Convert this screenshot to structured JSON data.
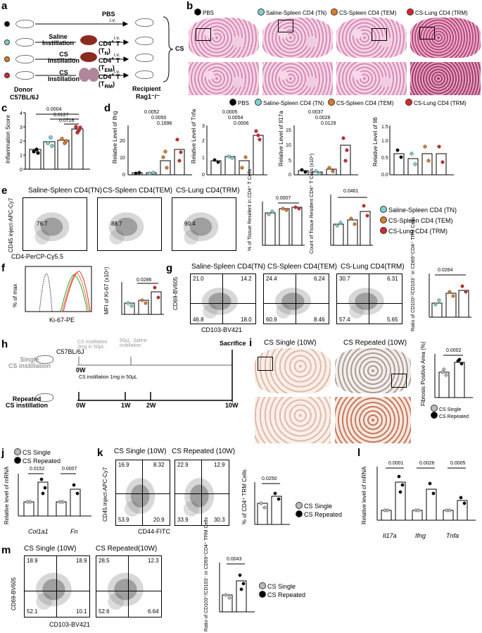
{
  "panels": {
    "a": {
      "letter": "a",
      "donor": "Donor",
      "donor_strain": "C57BL/6J",
      "saline_instillation": "Saline\nInstillation",
      "cs_instillation1": "CS\nInstillation",
      "cs_instillation2": "CS\nInstillation",
      "pbs": "PBS",
      "iv": "i.v.",
      "cd4_tn": "CD4⁺ T\n(T<sub>N</sub>)",
      "cd4_tem": "CD4⁺ T\n(T<sub>EM</sub>)",
      "cd4_trm": "CD4⁺ T\n(T<sub>RM</sub>)",
      "recipient": "Recipient",
      "recipient_strain": "Rag1⁻/⁻",
      "cs": "CS",
      "colors": [
        "#000000",
        "#7ecfd0",
        "#e07b2a",
        "#d7272c"
      ]
    },
    "b": {
      "letter": "b",
      "legend": [
        "PBS",
        "Saline-Spleen CD4 (TN)",
        "CS-Spleen CD4 (TEM)",
        "CS-Lung CD4 (TRM)"
      ]
    },
    "c": {
      "letter": "c",
      "ylabel": "Inflammation Score",
      "pvals": [
        "0.0004",
        "0.0127",
        "0.0716"
      ],
      "yticks": [
        "0",
        "1",
        "2",
        "3",
        "4"
      ]
    },
    "d": {
      "letter": "d",
      "legend": [
        "PBS",
        "Saline-Spleen CD4 (TN)",
        "CS-Spleen CD4 (TEM)",
        "CS-Lung CD4 (TRM)"
      ],
      "ifng_label": "Relative Level of Ifng",
      "tnfa_label": "Relative Level of Tnfa",
      "il17a_label": "Relative Level of Il17a",
      "il6_label": "Relative Level of Il6",
      "ifng_pvals": [
        "0.0052",
        "0.0050",
        "0.1696"
      ],
      "tnfa_pvals": [
        "0.0005",
        "0.0054",
        "0.0006"
      ],
      "il17a_pvals": [
        "0.0037",
        "0.0028",
        "0.0129"
      ]
    },
    "e": {
      "letter": "e",
      "titles": [
        "Saline-Spleen CD4(TN)",
        "CS-Spleen CD4(TEM)",
        "CS-Lung CD4(TRM)"
      ],
      "pcts": [
        "76.7",
        "88.7",
        "90.4"
      ],
      "ylabel": "CD45 inject-APC-Cy7",
      "xlabel": "CD4-PerCP-Cy5.5",
      "bar1_ylabel": "% of Tissue Resident in CD4⁺ T Cells",
      "bar1_p": "0.0007",
      "bar2_ylabel": "Count of Tissue Resident CD4⁺ T Cells (x10⁴)",
      "bar2_p": "0.0461",
      "legend": [
        "Saline-Spleen CD4 (TN)",
        "CS-Spleen CD4 (TEM)",
        "CS-Lung CD4 (TRM)"
      ]
    },
    "f": {
      "letter": "f",
      "ylabel": "% of max",
      "xlabel": "Ki-67-PE",
      "bar_ylabel": "MFI of Ki-67 (x10⁴)",
      "p": "0.0286"
    },
    "g": {
      "letter": "g",
      "titles": [
        "Saline-Spleen CD4(TN)",
        "CS-Spleen CD4(TEM)",
        "CS-Lung CD4(TRM)"
      ],
      "quads": [
        [
          "21.0",
          "14.2",
          "46.8",
          "18.0"
        ],
        [
          "24.4",
          "6.24",
          "60.9",
          "8.46"
        ],
        [
          "30.7",
          "6.31",
          "57.4",
          "5.65"
        ]
      ],
      "ylabel": "CD69-BV605",
      "xlabel": "CD103-BV421",
      "bar_ylabel": "Ratio of CD103⁺/CD103⁻ in CD69⁺CD4⁺ TRM Cells",
      "p": "0.0264"
    },
    "h": {
      "letter": "h",
      "strain": "C57BL/6J",
      "single_label": "Single\nCS instillation",
      "repeated_label": "Repeated\nCS instillation",
      "single_top": "CS instillation\n3mg in 50μL",
      "single_top2": "50μL  Saline\ninstillation",
      "repeated_top": "CS instillation 1mg in 50μL",
      "sacrifice": "Sacrifice",
      "timepoints": [
        "0W",
        "0W",
        "1W",
        "2W",
        "10W"
      ]
    },
    "i": {
      "letter": "i",
      "titles": [
        "CS Single (10W)",
        "CS Repeated (10W)"
      ],
      "ylabel": "Fibrosis Positive Area (%)",
      "p": "0.0002",
      "legend": [
        "CS Single",
        "CS Repeated"
      ]
    },
    "j": {
      "letter": "j",
      "legend": [
        "CS Single",
        "CS Repeated"
      ],
      "ylabel": "Relative level of mRNA",
      "pvals": [
        "0.0152",
        "0.0007"
      ],
      "xcats": [
        "Col1a1",
        "Fn"
      ]
    },
    "k": {
      "letter": "k",
      "titles": [
        "CS Single (10W)",
        "CS Repeated (10W)"
      ],
      "quads": [
        [
          "16.9",
          "8.32",
          "53.9",
          "20.9"
        ],
        [
          "22.9",
          "12.9",
          "33.9",
          "30.3"
        ]
      ],
      "ylabel": "CD45 inject-APC-Cy7",
      "xlabel": "CD44-FITC",
      "bar_ylabel": "% of CD4⁺ TRM Cells",
      "p": "0.0250",
      "legend": [
        "CS Single",
        "CS Repeated"
      ]
    },
    "l": {
      "letter": "l",
      "ylabel": "Relative level of mRNA",
      "pvals": [
        "0.0001",
        "0.0026",
        "0.0005"
      ],
      "xcats": [
        "Il17a",
        "Ifng",
        "Tnfa"
      ]
    },
    "m": {
      "letter": "m",
      "titles": [
        "CS Single (10W)",
        "CS Repeated(10W)"
      ],
      "quads": [
        [
          "18.9",
          "18.9",
          "52.1",
          "10.1"
        ],
        [
          "28.5",
          "12.3",
          "52.6",
          "6.64"
        ]
      ],
      "ylabel": "CD69-BV605",
      "xlabel": "CD103-BV421",
      "bar_ylabel": "Ratio of CD103⁺/CD103⁻ in CD69⁺CD4⁺ TRM Cells",
      "p": "0.0043",
      "legend": [
        "CS Single",
        "CS Repeated"
      ]
    }
  }
}
